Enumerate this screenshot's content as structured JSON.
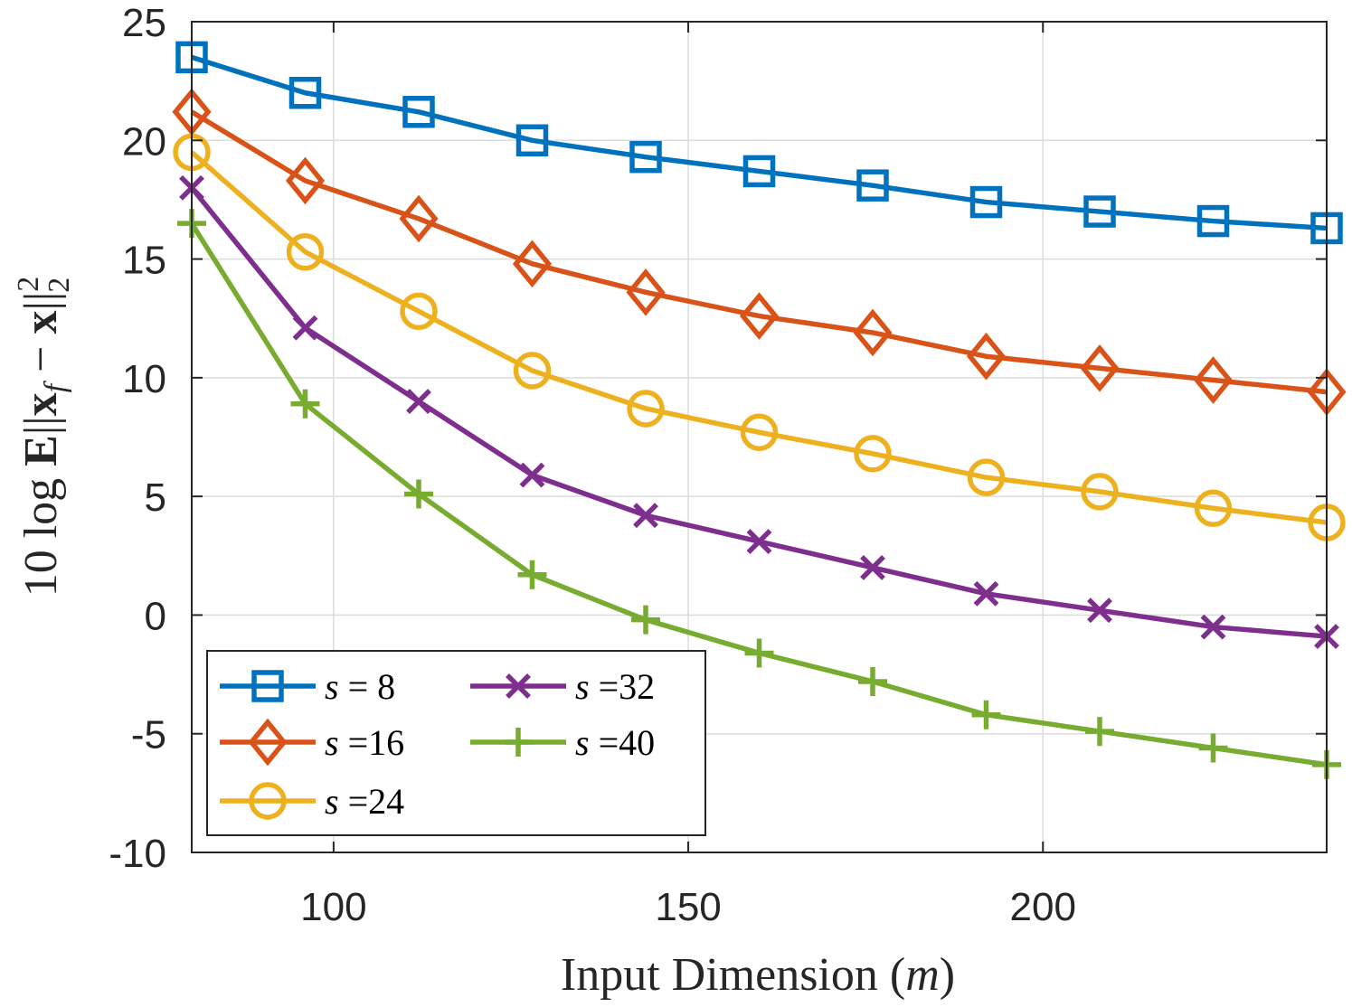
{
  "chart_data": {
    "type": "line",
    "xlabel": "Input Dimension (m)",
    "ylabel": "10 log E||x_f − x||²₂",
    "xlim": [
      80,
      240
    ],
    "ylim": [
      -10,
      25
    ],
    "xticks": [
      100,
      150,
      200
    ],
    "yticks": [
      25,
      20,
      15,
      10,
      5,
      0,
      -5,
      -10
    ],
    "xtick_labels": [
      "100",
      "150",
      "200"
    ],
    "ytick_labels": [
      "25",
      "20",
      "15",
      "10",
      "5",
      "0",
      "-5",
      "-10"
    ],
    "grid": true,
    "legend_position": "bottom-left",
    "x": [
      80,
      96,
      112,
      128,
      144,
      160,
      176,
      192,
      208,
      224,
      240
    ],
    "series": [
      {
        "name": "s = 8",
        "label_var": "s",
        "label_val": "= 8",
        "color": "#0072BD",
        "marker": "square",
        "values": [
          23.5,
          22.0,
          21.2,
          20.0,
          19.3,
          18.7,
          18.1,
          17.4,
          17.0,
          16.6,
          16.3
        ]
      },
      {
        "name": "s =16",
        "label_var": "s",
        "label_val": "=16",
        "color": "#D95319",
        "marker": "diamond",
        "values": [
          21.2,
          18.3,
          16.7,
          14.8,
          13.6,
          12.6,
          11.9,
          10.9,
          10.4,
          9.9,
          9.4
        ]
      },
      {
        "name": "s =24",
        "label_var": "s",
        "label_val": "=24",
        "color": "#EDB120",
        "marker": "circle",
        "values": [
          19.5,
          15.3,
          12.8,
          10.3,
          8.7,
          7.7,
          6.8,
          5.8,
          5.2,
          4.5,
          3.9
        ]
      },
      {
        "name": "s =32",
        "label_var": "s",
        "label_val": "=32",
        "color": "#7E2F8E",
        "marker": "x",
        "values": [
          18.0,
          12.1,
          9.0,
          5.9,
          4.2,
          3.1,
          2.0,
          0.9,
          0.2,
          -0.5,
          -0.9
        ]
      },
      {
        "name": "s =40",
        "label_var": "s",
        "label_val": "=40",
        "color": "#77AC30",
        "marker": "plus",
        "values": [
          16.5,
          8.9,
          5.1,
          1.7,
          -0.2,
          -1.6,
          -2.8,
          -4.2,
          -4.9,
          -5.6,
          -6.3
        ]
      }
    ]
  }
}
